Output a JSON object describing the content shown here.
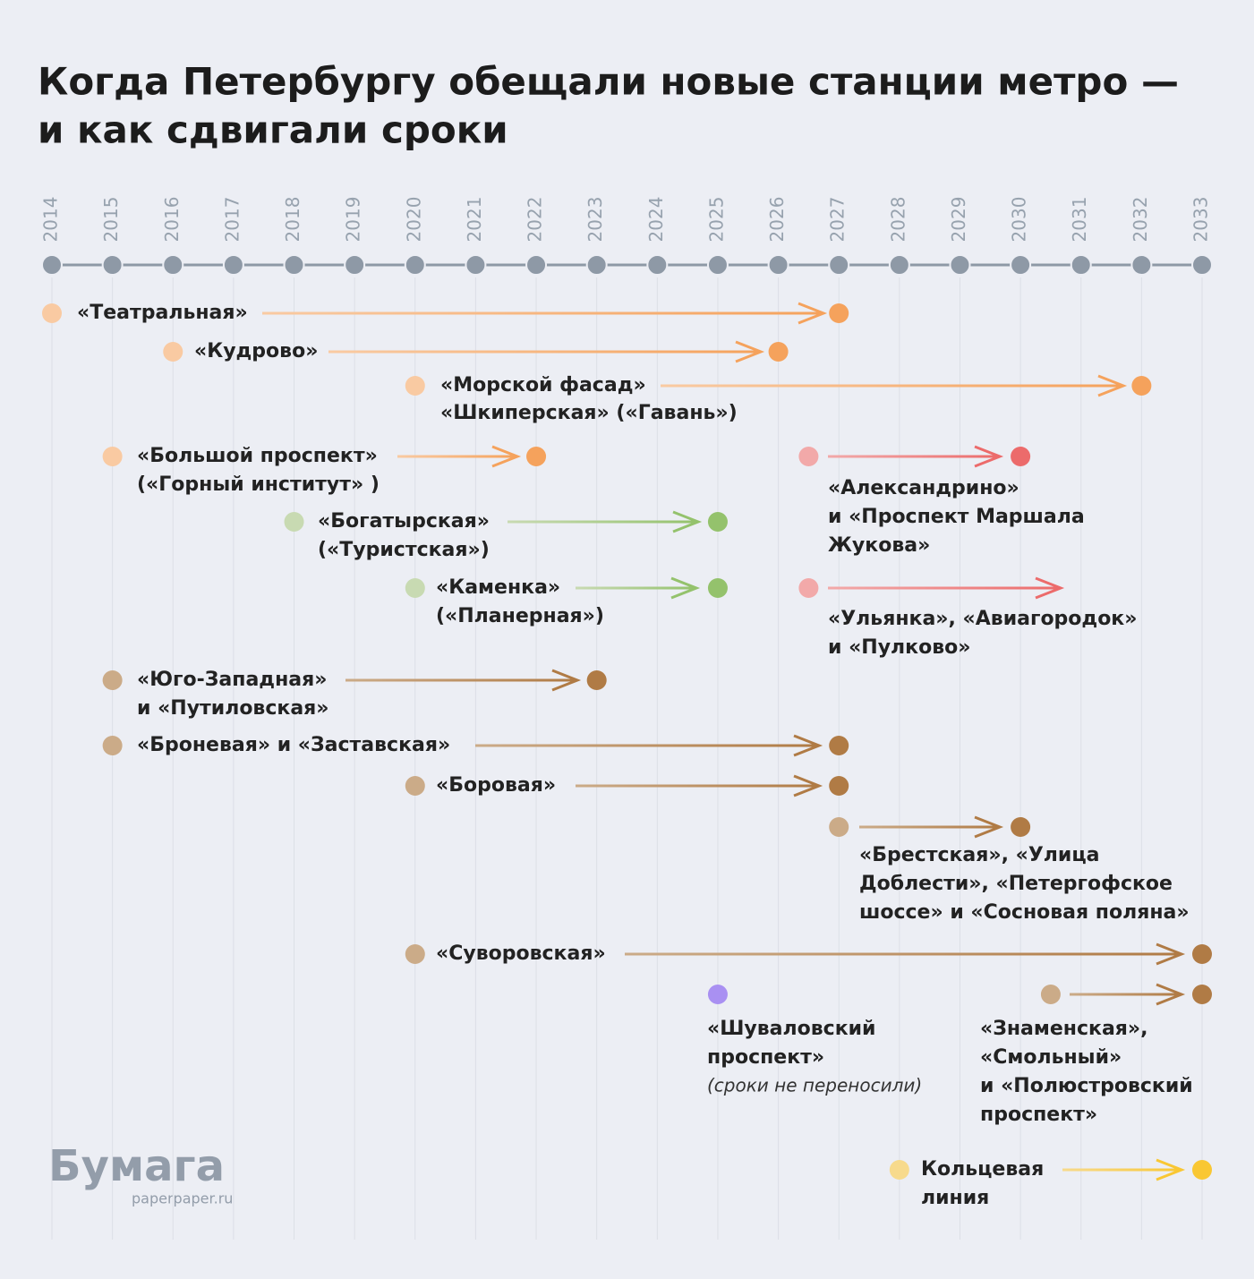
{
  "chart_data": {
    "type": "timeline",
    "title": [
      "Когда Петербургу обещали новые станции метро —",
      "и как сдвигали сроки"
    ],
    "xlim": [
      2014,
      2033
    ],
    "xticks": [
      2014,
      2015,
      2016,
      2017,
      2018,
      2019,
      2020,
      2021,
      2022,
      2023,
      2024,
      2025,
      2026,
      2027,
      2028,
      2029,
      2030,
      2031,
      2032,
      2033
    ],
    "grid": true,
    "series": [
      {
        "name": [
          "«Театральная»"
        ],
        "values": [
          2014,
          2027
        ],
        "start_color": "#f9caa2",
        "color": "#f5a25c"
      },
      {
        "name": [
          "«Кудрово»"
        ],
        "values": [
          2016,
          2026
        ],
        "start_color": "#f9caa2",
        "color": "#f5a25c"
      },
      {
        "name": [
          "«Морской фасад»",
          "«Шкиперская» («Гавань»)"
        ],
        "values": [
          2020,
          2032
        ],
        "start_color": "#f9caa2",
        "color": "#f5a25c"
      },
      {
        "name": [
          "«Большой проспект»",
          "(«Горный институт» )"
        ],
        "values": [
          2015,
          2022
        ],
        "start_color": "#f9caa2",
        "color": "#f5a25c"
      },
      {
        "name": [
          "«Александрино»",
          "и «Проспект Маршала",
          "Жукова»"
        ],
        "values": [
          2026.5,
          2030
        ],
        "start_color": "#f2a9a9",
        "color": "#ec6b6b"
      },
      {
        "name": [
          "«Богатырская»",
          "(«Туристская»)"
        ],
        "values": [
          2018,
          2025
        ],
        "start_color": "#c8dab2",
        "color": "#94c26c"
      },
      {
        "name": [
          "«Каменка»",
          "(«Планерная»)"
        ],
        "values": [
          2020,
          2025
        ],
        "start_color": "#c8dab2",
        "color": "#94c26c"
      },
      {
        "name": [
          "«Ульянка», «Авиагородок»",
          "и «Пулково»"
        ],
        "values": [
          2026.5,
          null
        ],
        "start_color": "#f2a9a9",
        "color": "#ec6b6b"
      },
      {
        "name": [
          "«Юго-Западная»",
          "и «Путиловская»"
        ],
        "values": [
          2015,
          2023
        ],
        "start_color": "#cbab88",
        "color": "#b07b45"
      },
      {
        "name": [
          "«Броневая» и «Заставская»"
        ],
        "values": [
          2015,
          2027
        ],
        "start_color": "#cbab88",
        "color": "#b07b45"
      },
      {
        "name": [
          "«Боровая»"
        ],
        "values": [
          2020,
          2027
        ],
        "start_color": "#cbab88",
        "color": "#b07b45"
      },
      {
        "name": [
          "«Брестская», «Улица",
          "Доблести», «Петергофское",
          "шоссе» и «Сосновая поляна»"
        ],
        "values": [
          2027,
          2030
        ],
        "start_color": "#cbab88",
        "color": "#b07b45"
      },
      {
        "name": [
          "«Суворовская»"
        ],
        "values": [
          2020,
          2033
        ],
        "start_color": "#cbab88",
        "color": "#b07b45"
      },
      {
        "name": [
          "«Шуваловский",
          "проспект»"
        ],
        "note": "(сроки не переносили)",
        "values": [
          2025,
          null
        ],
        "start_color": "#a990f2",
        "color": "#a990f2"
      },
      {
        "name": [
          "«Знаменская»,",
          "«Смольный»",
          "и «Полюстровский",
          "проспект»"
        ],
        "values": [
          2030.5,
          2033
        ],
        "start_color": "#cbab88",
        "color": "#b07b45"
      },
      {
        "name": [
          "Кольцевая",
          "линия"
        ],
        "values": [
          2028,
          2033
        ],
        "start_color": "#f7da8c",
        "color": "#f9c733"
      }
    ],
    "logo": "Бумага",
    "logo_url": "paperpaper.ru"
  }
}
